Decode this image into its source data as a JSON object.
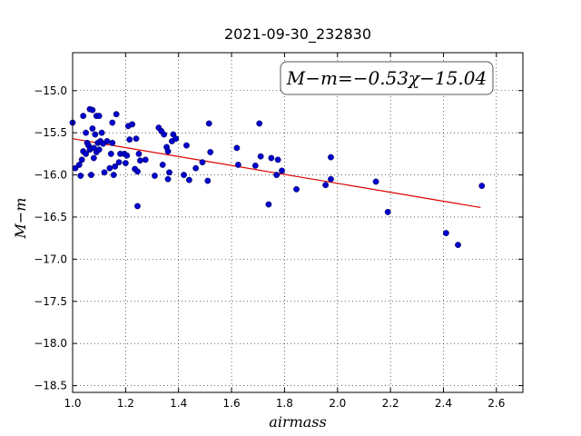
{
  "chart_data": {
    "type": "scatter",
    "title": "2021-09-30_232830",
    "xlabel": "airmass",
    "ylabel": "M−m",
    "xlim": [
      1.0,
      2.7
    ],
    "ylim": [
      -18.58,
      -14.55
    ],
    "y_inverted": true,
    "grid": true,
    "x_ticks": [
      {
        "value": 1.0,
        "label": "1.0"
      },
      {
        "value": 1.2,
        "label": "1.2"
      },
      {
        "value": 1.4,
        "label": "1.4"
      },
      {
        "value": 1.6,
        "label": "1.6"
      },
      {
        "value": 1.8,
        "label": "1.8"
      },
      {
        "value": 2.0,
        "label": "2.0"
      },
      {
        "value": 2.2,
        "label": "2.2"
      },
      {
        "value": 2.4,
        "label": "2.4"
      },
      {
        "value": 2.6,
        "label": "2.6"
      }
    ],
    "y_ticks": [
      {
        "value": -15.0,
        "label": "−15.0"
      },
      {
        "value": -15.5,
        "label": "−15.5"
      },
      {
        "value": -16.0,
        "label": "−16.0"
      },
      {
        "value": -16.5,
        "label": "−16.5"
      },
      {
        "value": -17.0,
        "label": "−17.0"
      },
      {
        "value": -17.5,
        "label": "−17.5"
      },
      {
        "value": -18.0,
        "label": "−18.0"
      },
      {
        "value": -18.5,
        "label": "−18.5"
      }
    ],
    "points_color": "#0000cc",
    "fit_color": "#dd0000",
    "fit": {
      "slope": -0.53,
      "intercept": -15.04,
      "x_range": [
        1.0,
        2.54
      ]
    },
    "annotation": "M−m=−0.53χ−15.04",
    "points": [
      [
        1.0,
        -15.38
      ],
      [
        1.01,
        -15.92
      ],
      [
        1.025,
        -15.88
      ],
      [
        1.03,
        -16.01
      ],
      [
        1.035,
        -15.82
      ],
      [
        1.04,
        -15.72
      ],
      [
        1.04,
        -15.3
      ],
      [
        1.05,
        -15.5
      ],
      [
        1.05,
        -15.75
      ],
      [
        1.055,
        -15.62
      ],
      [
        1.06,
        -15.65
      ],
      [
        1.065,
        -15.7
      ],
      [
        1.065,
        -15.22
      ],
      [
        1.07,
        -16.0
      ],
      [
        1.075,
        -15.45
      ],
      [
        1.075,
        -15.23
      ],
      [
        1.08,
        -15.68
      ],
      [
        1.08,
        -15.8
      ],
      [
        1.085,
        -15.52
      ],
      [
        1.09,
        -15.73
      ],
      [
        1.09,
        -15.3
      ],
      [
        1.095,
        -15.62
      ],
      [
        1.1,
        -15.7
      ],
      [
        1.1,
        -15.3
      ],
      [
        1.105,
        -15.6
      ],
      [
        1.11,
        -15.5
      ],
      [
        1.115,
        -15.63
      ],
      [
        1.12,
        -15.97
      ],
      [
        1.13,
        -15.6
      ],
      [
        1.14,
        -15.92
      ],
      [
        1.145,
        -15.75
      ],
      [
        1.15,
        -15.38
      ],
      [
        1.15,
        -15.62
      ],
      [
        1.155,
        -16.0
      ],
      [
        1.16,
        -15.9
      ],
      [
        1.165,
        -15.28
      ],
      [
        1.175,
        -15.85
      ],
      [
        1.18,
        -15.75
      ],
      [
        1.195,
        -15.75
      ],
      [
        1.2,
        -15.86
      ],
      [
        1.205,
        -15.77
      ],
      [
        1.21,
        -15.42
      ],
      [
        1.215,
        -15.58
      ],
      [
        1.225,
        -15.4
      ],
      [
        1.235,
        -15.93
      ],
      [
        1.24,
        -15.57
      ],
      [
        1.245,
        -15.96
      ],
      [
        1.245,
        -16.37
      ],
      [
        1.25,
        -15.75
      ],
      [
        1.255,
        -15.83
      ],
      [
        1.275,
        -15.82
      ],
      [
        1.31,
        -16.01
      ],
      [
        1.325,
        -15.44
      ],
      [
        1.335,
        -15.48
      ],
      [
        1.34,
        -15.88
      ],
      [
        1.345,
        -15.52
      ],
      [
        1.355,
        -15.67
      ],
      [
        1.36,
        -15.72
      ],
      [
        1.36,
        -16.05
      ],
      [
        1.365,
        -15.97
      ],
      [
        1.375,
        -15.6
      ],
      [
        1.38,
        -15.52
      ],
      [
        1.39,
        -15.57
      ],
      [
        1.42,
        -16.0
      ],
      [
        1.43,
        -15.65
      ],
      [
        1.44,
        -16.06
      ],
      [
        1.465,
        -15.92
      ],
      [
        1.49,
        -15.85
      ],
      [
        1.51,
        -16.07
      ],
      [
        1.515,
        -15.39
      ],
      [
        1.52,
        -15.73
      ],
      [
        1.62,
        -15.68
      ],
      [
        1.625,
        -15.88
      ],
      [
        1.69,
        -15.89
      ],
      [
        1.705,
        -15.39
      ],
      [
        1.71,
        -15.78
      ],
      [
        1.74,
        -16.35
      ],
      [
        1.75,
        -15.8
      ],
      [
        1.77,
        -16.0
      ],
      [
        1.775,
        -15.82
      ],
      [
        1.79,
        -15.95
      ],
      [
        1.845,
        -16.17
      ],
      [
        1.955,
        -16.12
      ],
      [
        1.975,
        -15.79
      ],
      [
        1.975,
        -16.05
      ],
      [
        2.145,
        -16.08
      ],
      [
        2.19,
        -16.44
      ],
      [
        2.41,
        -16.69
      ],
      [
        2.455,
        -16.83
      ],
      [
        2.545,
        -16.13
      ]
    ]
  }
}
